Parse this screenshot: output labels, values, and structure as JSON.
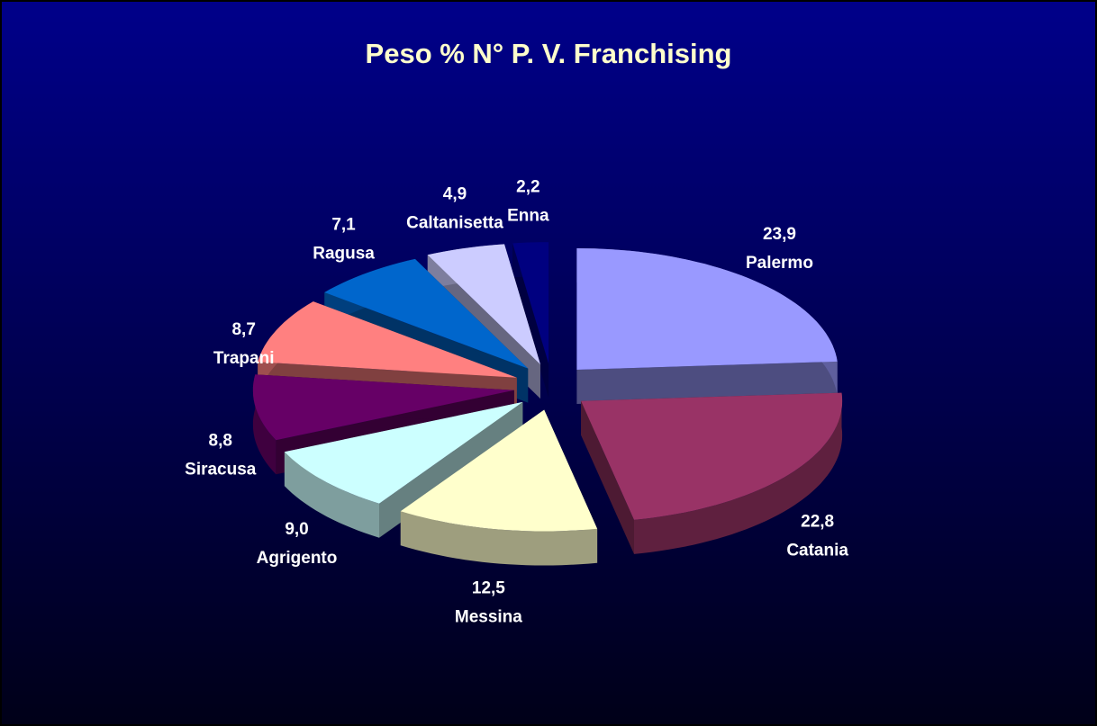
{
  "chart_data": {
    "type": "pie",
    "title": "Peso % N° P. V. Franchising",
    "categories": [
      "Palermo",
      "Catania",
      "Messina",
      "Agrigento",
      "Siracusa",
      "Trapani",
      "Ragusa",
      "Caltanisetta",
      "Enna"
    ],
    "values": [
      23.9,
      22.8,
      12.5,
      9.0,
      8.8,
      8.7,
      7.1,
      4.9,
      2.2
    ],
    "value_labels": [
      "23,9",
      "22,8",
      "12,5",
      "9,0",
      "8,8",
      "8,7",
      "7,1",
      "4,9",
      "2,2"
    ],
    "colors": [
      "#9999ff",
      "#993366",
      "#ffffcc",
      "#ccffff",
      "#660066",
      "#ff8080",
      "#0066cc",
      "#ccccff",
      "#000080"
    ]
  }
}
